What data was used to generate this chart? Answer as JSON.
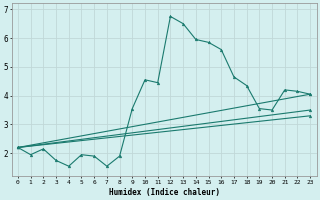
{
  "title": "",
  "xlabel": "Humidex (Indice chaleur)",
  "bg_color": "#d4efef",
  "grid_color": "#c0d8d8",
  "line_color": "#1a7a6e",
  "xlim": [
    -0.5,
    23.5
  ],
  "ylim": [
    1.2,
    7.2
  ],
  "xticks": [
    0,
    1,
    2,
    3,
    4,
    5,
    6,
    7,
    8,
    9,
    10,
    11,
    12,
    13,
    14,
    15,
    16,
    17,
    18,
    19,
    20,
    21,
    22,
    23
  ],
  "yticks": [
    2,
    3,
    4,
    5,
    6,
    7
  ],
  "series": [
    {
      "x": [
        0,
        1,
        2,
        3,
        4,
        5,
        6,
        7,
        8,
        9,
        10,
        11,
        12,
        13,
        14,
        15,
        16,
        17,
        18,
        19,
        20,
        21,
        22,
        23
      ],
      "y": [
        2.2,
        1.95,
        2.15,
        1.75,
        1.55,
        1.95,
        1.9,
        1.55,
        1.9,
        3.55,
        4.55,
        4.45,
        6.75,
        6.5,
        5.95,
        5.85,
        5.6,
        4.65,
        4.35,
        3.55,
        3.5,
        4.2,
        4.15,
        4.05
      ]
    },
    {
      "x": [
        0,
        23
      ],
      "y": [
        2.2,
        4.05
      ]
    },
    {
      "x": [
        0,
        23
      ],
      "y": [
        2.2,
        3.5
      ]
    },
    {
      "x": [
        0,
        23
      ],
      "y": [
        2.2,
        3.3
      ]
    }
  ]
}
